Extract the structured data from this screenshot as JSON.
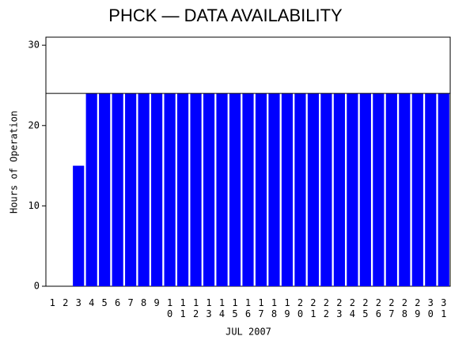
{
  "chart_data": {
    "type": "bar",
    "title": "PHCK — DATA AVAILABILITY",
    "x_label": "JUL 2007",
    "y_label": "Hours of Operation",
    "categories": [
      "1",
      "2",
      "3",
      "4",
      "5",
      "6",
      "7",
      "8",
      "9",
      "10",
      "11",
      "12",
      "13",
      "14",
      "15",
      "16",
      "17",
      "18",
      "19",
      "20",
      "21",
      "22",
      "23",
      "24",
      "25",
      "26",
      "27",
      "28",
      "29",
      "30",
      "31"
    ],
    "values": [
      0,
      0,
      15,
      24,
      24,
      24,
      24,
      24,
      24,
      24,
      24,
      24,
      24,
      24,
      24,
      24,
      24,
      24,
      24,
      24,
      24,
      24,
      24,
      24,
      24,
      24,
      24,
      24,
      24,
      24,
      24
    ],
    "color": "#0000ff",
    "ylim": [
      0,
      31
    ],
    "yticks": [
      0,
      10,
      20,
      30
    ],
    "ref_line": 24
  }
}
